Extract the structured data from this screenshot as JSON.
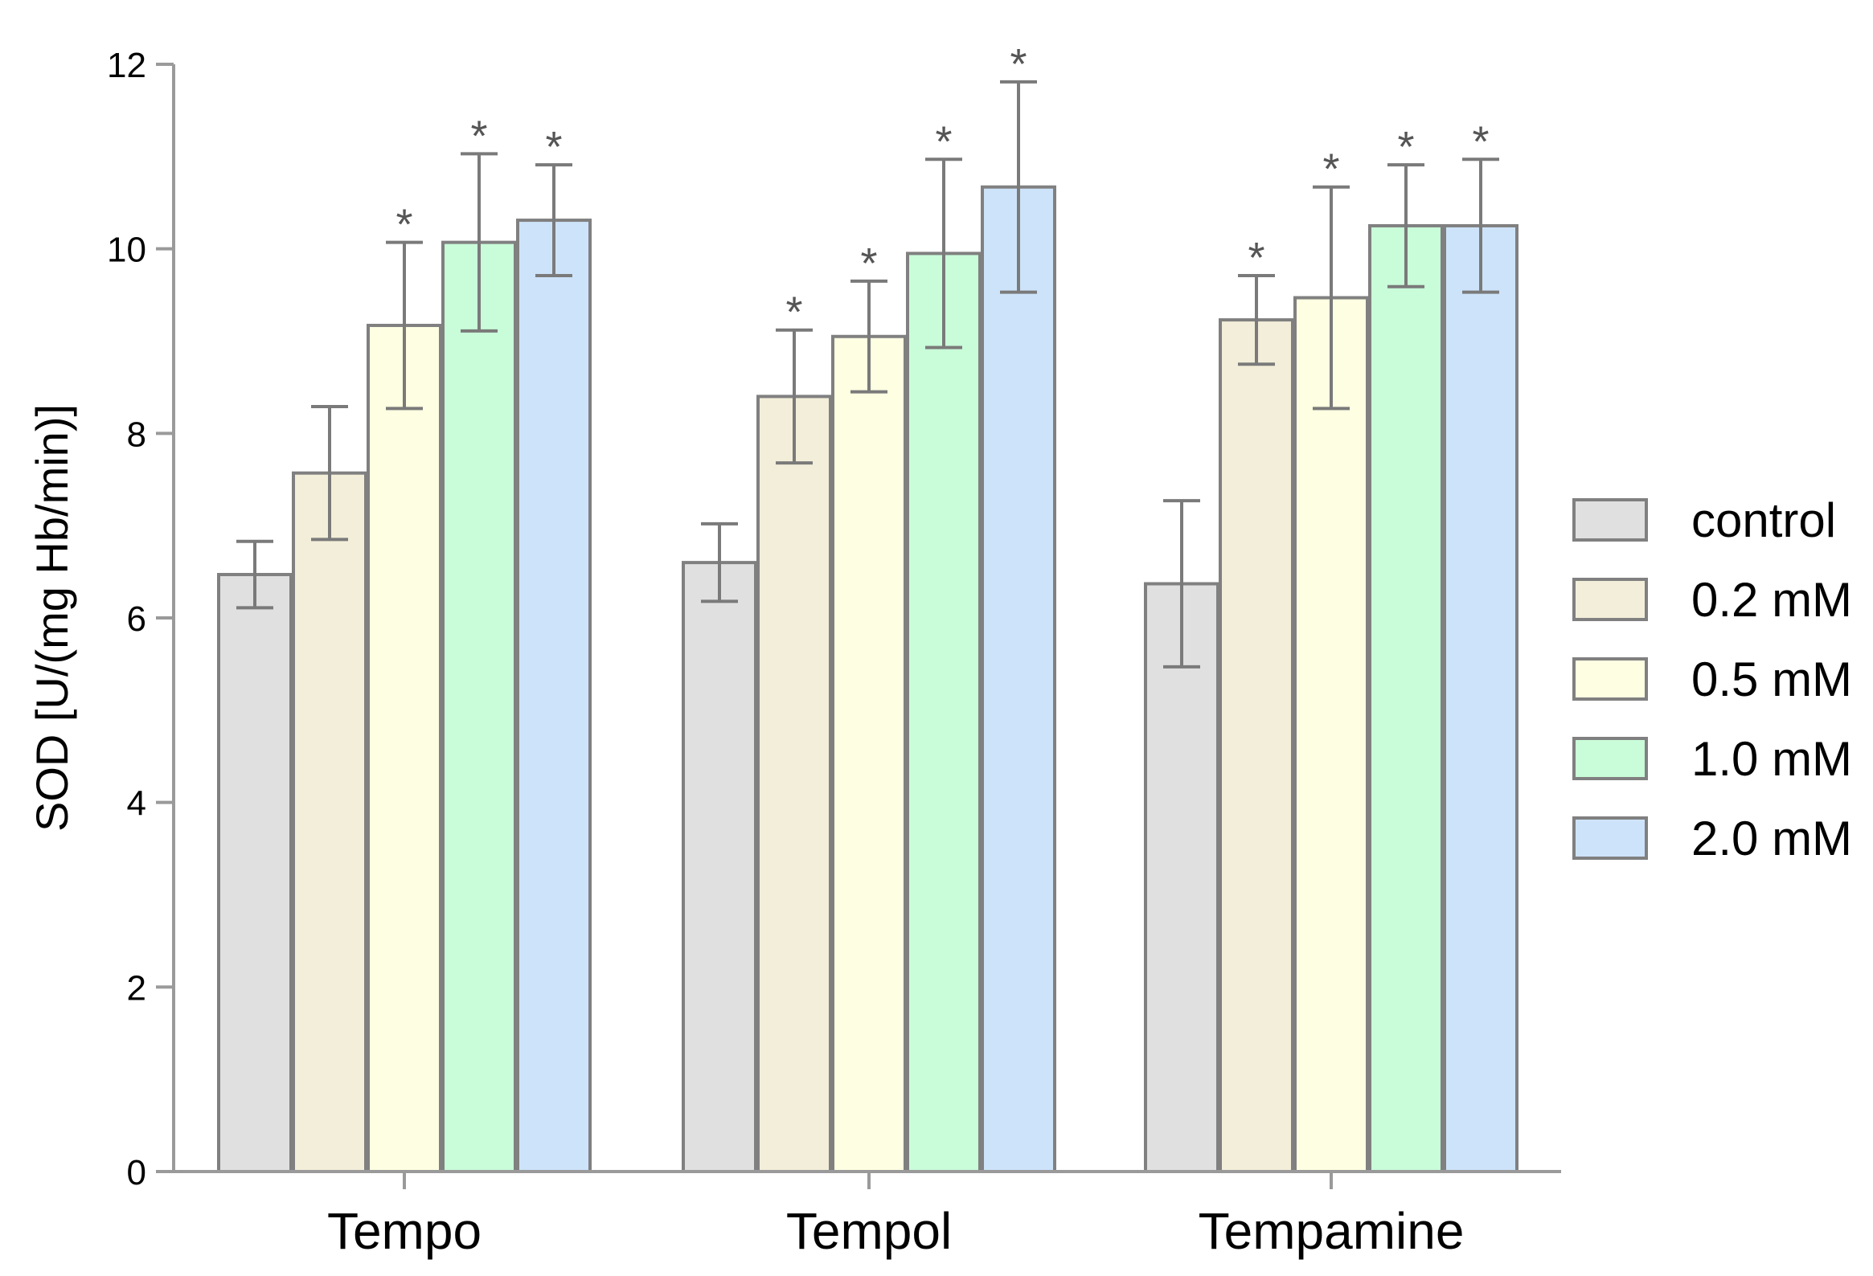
{
  "chart_data": {
    "type": "bar",
    "title": "",
    "xlabel": "",
    "ylabel": "SOD [U/(mg Hb/min)]",
    "ylim": [
      0,
      12
    ],
    "yticks": [
      0,
      2,
      4,
      6,
      8,
      10,
      12
    ],
    "grid": false,
    "legend_position": "right",
    "categories": [
      "Tempo",
      "Tempol",
      "Tempamine"
    ],
    "series": [
      {
        "name": "control",
        "color": "#e0e0e0",
        "values": [
          6.47,
          6.6,
          6.37
        ],
        "errors": [
          0.36,
          0.42,
          0.9
        ],
        "significance": [
          "",
          "",
          ""
        ]
      },
      {
        "name": "0.2 mM",
        "color": "#f3eed9",
        "values": [
          7.57,
          8.4,
          9.23
        ],
        "errors": [
          0.72,
          0.72,
          0.48
        ],
        "significance": [
          "",
          "*",
          "*"
        ]
      },
      {
        "name": "0.5 mM",
        "color": "#fefee2",
        "values": [
          9.17,
          9.05,
          9.47
        ],
        "errors": [
          0.9,
          0.6,
          1.2
        ],
        "significance": [
          "*",
          "*",
          "*"
        ]
      },
      {
        "name": "1.0 mM",
        "color": "#c9fcd9",
        "values": [
          10.07,
          9.95,
          10.25
        ],
        "errors": [
          0.96,
          1.02,
          0.66
        ],
        "significance": [
          "*",
          "*",
          "*"
        ]
      },
      {
        "name": "2.0 mM",
        "color": "#cde3f9",
        "values": [
          10.31,
          10.67,
          10.25
        ],
        "errors": [
          0.6,
          1.14,
          0.72
        ],
        "significance": [
          "*",
          "*",
          "*"
        ]
      }
    ]
  }
}
